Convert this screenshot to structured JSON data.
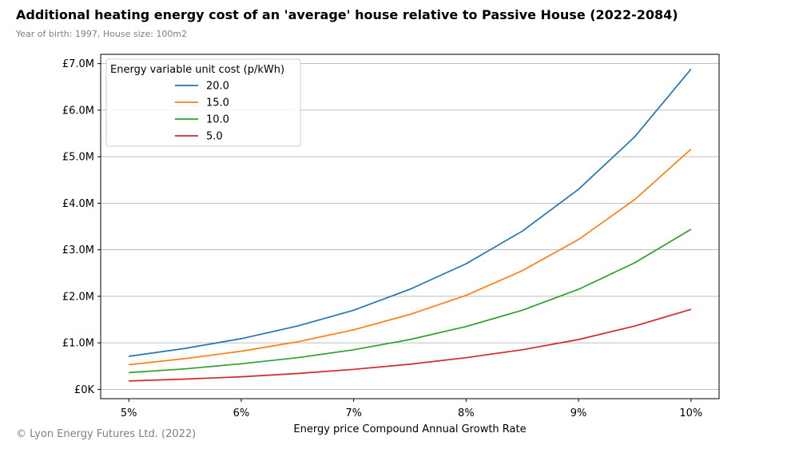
{
  "header": {
    "title": "Additional heating energy cost of an 'average' house relative to Passive House (2022-2084)",
    "subtitle": "Year of birth: 1997, House size: 100m2"
  },
  "footer": {
    "note": "© Lyon Energy Futures Ltd. (2022)"
  },
  "chart_data": {
    "type": "line",
    "title": "Additional heating energy cost of an 'average' house relative to Passive House (2022-2084)",
    "subtitle": "Year of birth: 1997, House size: 100m2",
    "xlabel": "Energy price Compound Annual Growth Rate",
    "ylabel": "",
    "x": [
      5,
      5.5,
      6,
      6.5,
      7,
      7.5,
      8,
      8.5,
      9,
      9.5,
      10
    ],
    "xlim": [
      4.75,
      10.25
    ],
    "ylim": [
      -0.2,
      7.2
    ],
    "x_ticks": [
      {
        "value": 5,
        "label": "5%"
      },
      {
        "value": 6,
        "label": "6%"
      },
      {
        "value": 7,
        "label": "7%"
      },
      {
        "value": 8,
        "label": "8%"
      },
      {
        "value": 9,
        "label": "9%"
      },
      {
        "value": 10,
        "label": "10%"
      }
    ],
    "y_ticks": [
      {
        "value": 0,
        "label": "£0K"
      },
      {
        "value": 1,
        "label": "£1.0M"
      },
      {
        "value": 2,
        "label": "£2.0M"
      },
      {
        "value": 3,
        "label": "£3.0M"
      },
      {
        "value": 4,
        "label": "£4.0M"
      },
      {
        "value": 5,
        "label": "£5.0M"
      },
      {
        "value": 6,
        "label": "£6.0M"
      },
      {
        "value": 7,
        "label": "£7.0M"
      }
    ],
    "grid": "horizontal",
    "legend": {
      "title": "Energy variable unit cost (p/kWh)",
      "placement": "top-left"
    },
    "series": [
      {
        "name": "20.0",
        "color": "#1f77b4",
        "values": [
          0.71,
          0.88,
          1.09,
          1.36,
          1.7,
          2.15,
          2.7,
          3.4,
          4.3,
          5.43,
          6.88
        ]
      },
      {
        "name": "15.0",
        "color": "#ff7f0e",
        "values": [
          0.53,
          0.66,
          0.82,
          1.02,
          1.28,
          1.61,
          2.02,
          2.55,
          3.22,
          4.08,
          5.16
        ]
      },
      {
        "name": "10.0",
        "color": "#2ca02c",
        "values": [
          0.36,
          0.44,
          0.55,
          0.68,
          0.85,
          1.07,
          1.35,
          1.7,
          2.15,
          2.72,
          3.44
        ]
      },
      {
        "name": "5.0",
        "color": "#d62728",
        "values": [
          0.18,
          0.22,
          0.27,
          0.34,
          0.43,
          0.54,
          0.68,
          0.85,
          1.07,
          1.36,
          1.72
        ]
      }
    ]
  }
}
